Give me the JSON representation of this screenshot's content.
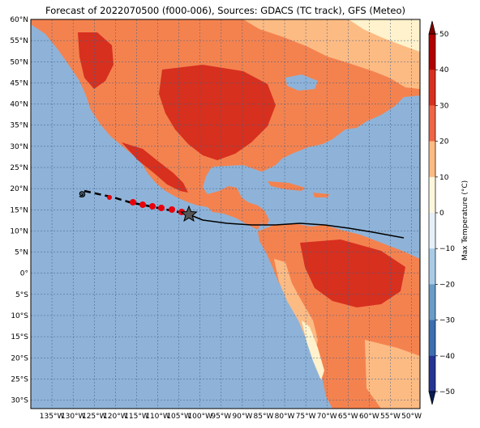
{
  "title": "Forecast of 2022070500 (f000-006), Sources: GDACS (TC track), GFS (Meteo)",
  "map": {
    "lon_range": [
      -140,
      -48
    ],
    "lat_range": [
      -32,
      60
    ],
    "lat_ticks": [
      "60°N",
      "55°N",
      "50°N",
      "45°N",
      "40°N",
      "35°N",
      "30°N",
      "25°N",
      "20°N",
      "15°N",
      "10°N",
      "5°N",
      "0°",
      "5°S",
      "10°S",
      "15°S",
      "20°S",
      "25°S",
      "30°S"
    ],
    "lon_ticks": [
      "135°W",
      "130°W",
      "125°W",
      "120°W",
      "115°W",
      "110°W",
      "105°W",
      "100°W",
      "95°W",
      "90°W",
      "85°W",
      "80°W",
      "75°W",
      "70°W",
      "65°W",
      "60°W",
      "55°W",
      "50°W"
    ],
    "ocean_color": "#8fb3d8",
    "land_hot_color": "#d7301f",
    "land_warm_color": "#f4824f",
    "land_mild_color": "#fdbb84",
    "land_cool_color": "#fff2cc"
  },
  "storm": {
    "current_marker": "star-icon",
    "forecast_marker_color": "#e8000b",
    "past_marker_color": "#000000",
    "track_color": "#000000"
  },
  "colorbar": {
    "label": "Max Temperature (°C)",
    "ticks": [
      "50",
      "40",
      "30",
      "20",
      "10",
      "0",
      "−10",
      "−20",
      "−30",
      "−40",
      "−50"
    ],
    "colors": [
      "#7f0000",
      "#b30000",
      "#d7301f",
      "#ef6548",
      "#fdbb84",
      "#fff7dc",
      "#e6f0f8",
      "#a9cbe6",
      "#6a9cc9",
      "#3b6fb0",
      "#253494",
      "#081d58"
    ]
  }
}
